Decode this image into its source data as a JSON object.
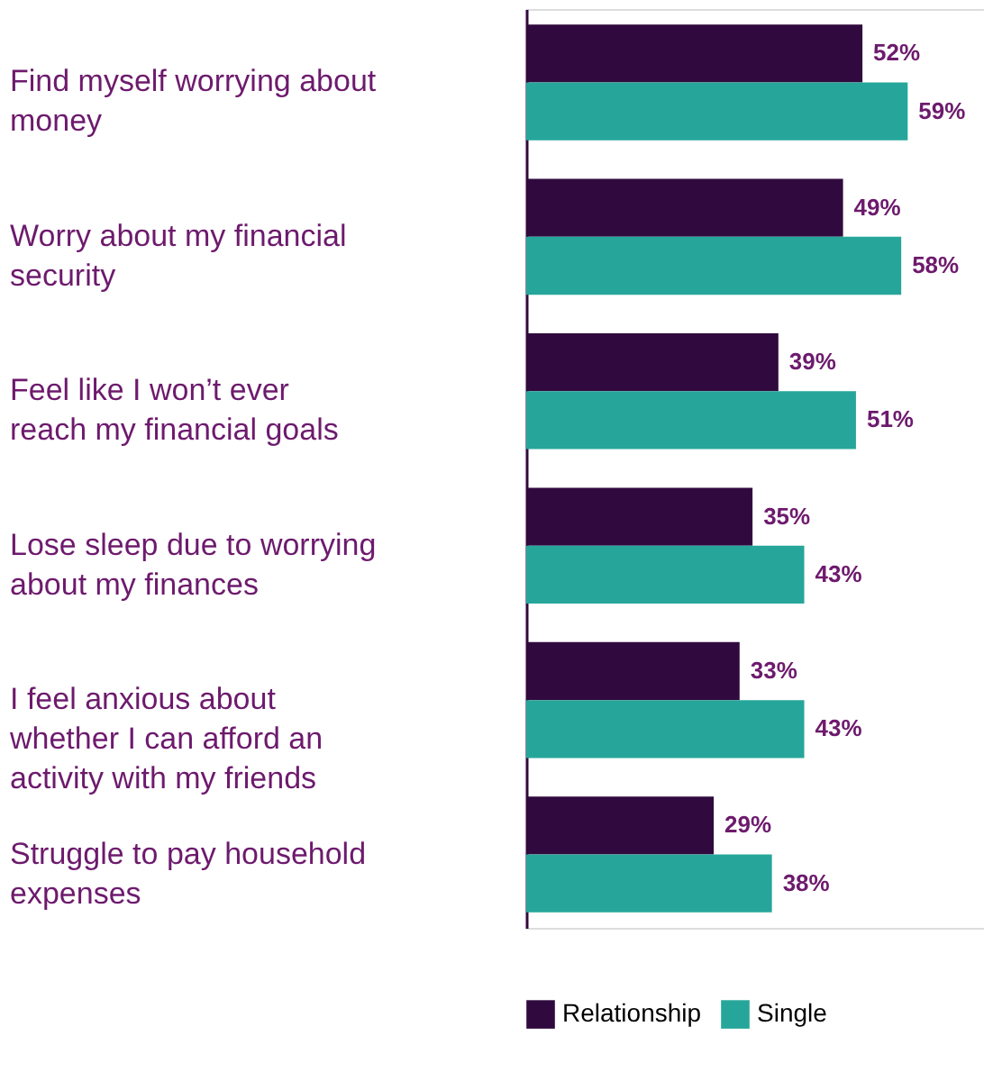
{
  "chart_data": {
    "type": "bar",
    "orientation": "horizontal",
    "categories": [
      "Find myself worrying about money",
      "Worry about my financial security",
      "Feel like I won’t ever reach my financial goals",
      "Lose sleep due to worrying about my finances",
      "I feel anxious about whether I can afford an activity with my friends",
      "Struggle to pay household expenses"
    ],
    "series": [
      {
        "name": "Relationship",
        "color": "#300a3e",
        "values": [
          52,
          49,
          39,
          35,
          33,
          29
        ],
        "value_labels": [
          "52%",
          "49%",
          "39%",
          "35%",
          "33%",
          "29%"
        ]
      },
      {
        "name": "Single",
        "color": "#26a69a",
        "values": [
          59,
          58,
          51,
          43,
          43,
          38
        ],
        "value_labels": [
          "59%",
          "58%",
          "51%",
          "43%",
          "43%",
          "38%"
        ]
      }
    ],
    "legend": "bottom",
    "tick_labels": "y"
  }
}
